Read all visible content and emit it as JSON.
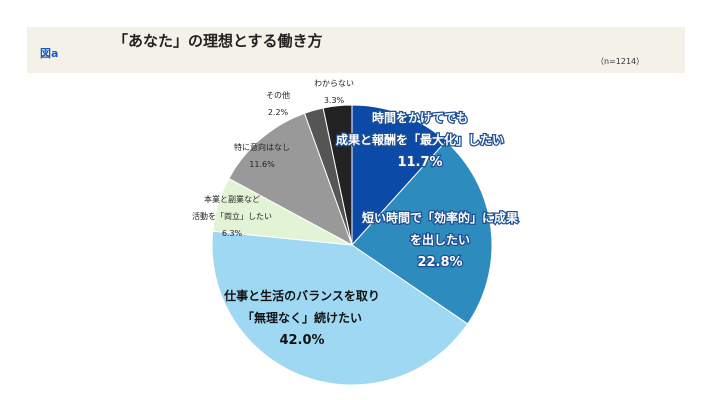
{
  "figure_label": "図a",
  "title": "「あなた」の理想とする働き方",
  "sample": "（n=1214）",
  "chart_data": {
    "type": "pie",
    "start": "top",
    "direction": "clockwise",
    "slices": [
      {
        "label": [
          "時間をかけてでも",
          "成果と報酬を「最大化」したい"
        ],
        "value": 11.7,
        "value_label": "11.7%",
        "color": "#0b4aa6"
      },
      {
        "label": [
          "短い時間で「効率的」に成果",
          "を出したい"
        ],
        "value": 22.8,
        "value_label": "22.8%",
        "color": "#2e8bbd"
      },
      {
        "label": [
          "仕事と生活のバランスを取り",
          "「無理なく」続けたい"
        ],
        "value": 42.0,
        "value_label": "42.0%",
        "color": "#9fd8f3"
      },
      {
        "label": [
          "本業と副業など",
          "活動を「両立」したい"
        ],
        "value": 6.3,
        "value_label": "6.3%",
        "color": "#e3f3d5"
      },
      {
        "label": [
          "特に意向はなし"
        ],
        "value": 11.6,
        "value_label": "11.6%",
        "color": "#999999"
      },
      {
        "label": [
          "その他"
        ],
        "value": 2.2,
        "value_label": "2.2%",
        "color": "#555555"
      },
      {
        "label": [
          "わからない"
        ],
        "value": 3.3,
        "value_label": "3.3%",
        "color": "#222222"
      }
    ]
  }
}
